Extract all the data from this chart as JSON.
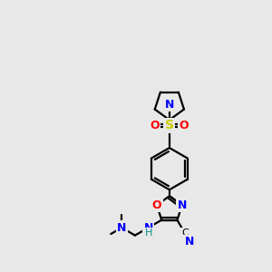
{
  "bg_color": "#e8e8e8",
  "atom_colors": {
    "C": "#000000",
    "N": "#0000ff",
    "O": "#ff0000",
    "S": "#cccc00",
    "H": "#008b8b"
  },
  "bond_color": "#000000",
  "fig_size": [
    3.0,
    3.0
  ],
  "dpi": 100,
  "lw": 1.6
}
